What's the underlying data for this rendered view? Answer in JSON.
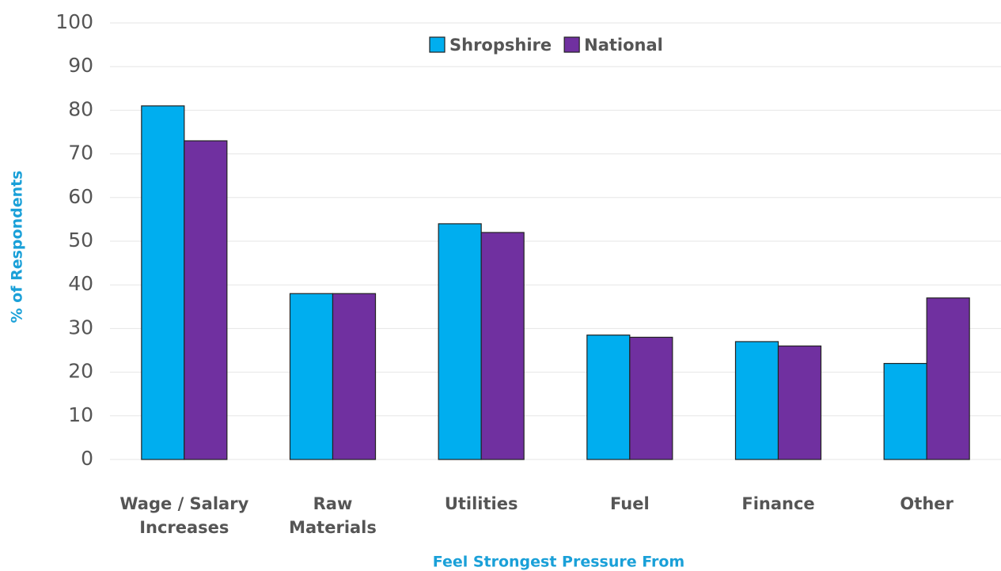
{
  "chart_data": {
    "type": "bar",
    "categories": [
      "Wage / Salary\nIncreases",
      "Raw\nMaterials",
      "Utilities",
      "Fuel",
      "Finance",
      "Other"
    ],
    "series": [
      {
        "name": "Shropshire",
        "color": "#00aeef",
        "values": [
          81,
          38,
          54,
          28.5,
          27,
          22
        ]
      },
      {
        "name": "National",
        "color": "#7030a0",
        "values": [
          73,
          38,
          52,
          28,
          26,
          37
        ]
      }
    ],
    "ylim": [
      0,
      100
    ],
    "yticks": [
      0,
      10,
      20,
      30,
      40,
      50,
      60,
      70,
      80,
      90,
      100
    ],
    "grid": true,
    "xlabel": "Feel Strongest Pressure From",
    "ylabel": "% of Respondents",
    "legend": "top"
  }
}
